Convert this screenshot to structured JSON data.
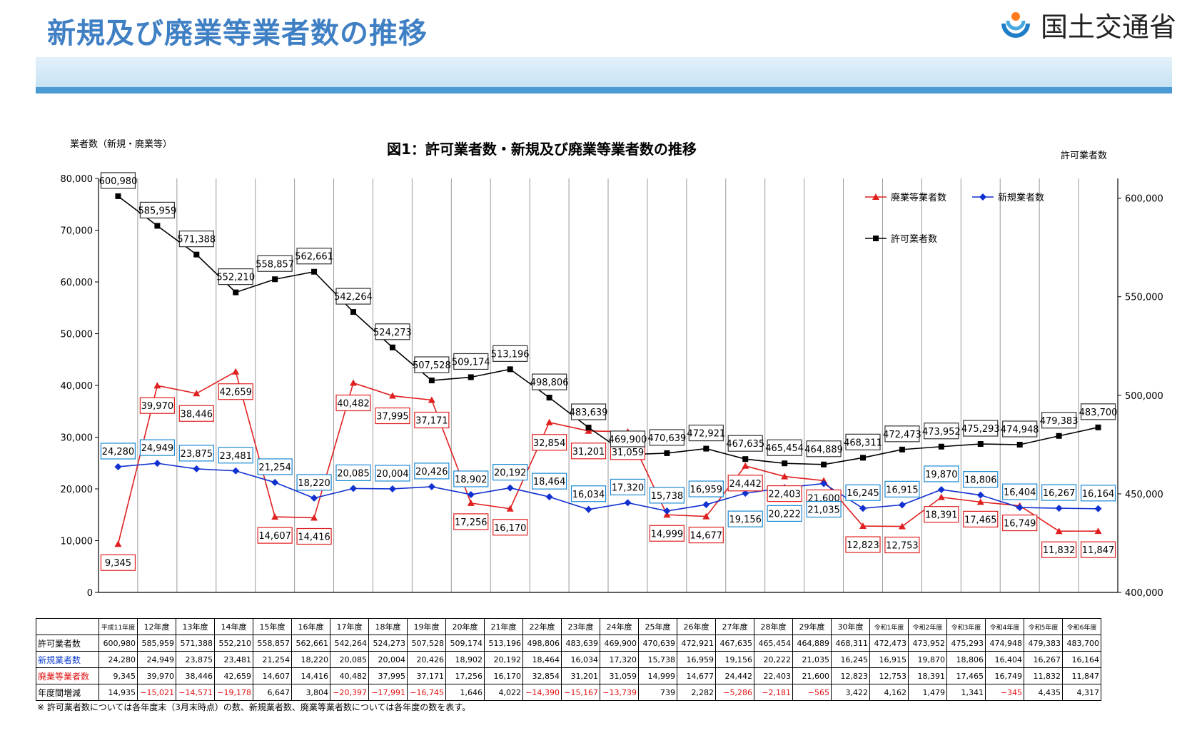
{
  "page": {
    "title": "新規及び廃業等業者数の推移",
    "ministry": "国土交通省",
    "footnote": "※  許可業者数については各年度末（3月末時点）の数、新規業者数、廃業等業者数については各年度の数を表す。"
  },
  "chart_data": {
    "type": "line",
    "title": "図1：許可業者数・新規及び廃業等業者数の推移",
    "ylabel_left": "業者数（新規・廃業等）",
    "ylabel_right": "許可業者数",
    "categories": [
      "平成11年度",
      "12年度",
      "13年度",
      "14年度",
      "15年度",
      "16年度",
      "17年度",
      "18年度",
      "19年度",
      "20年度",
      "21年度",
      "22年度",
      "23年度",
      "24年度",
      "25年度",
      "26年度",
      "27年度",
      "28年度",
      "29年度",
      "30年度",
      "令和1年度",
      "令和2年度",
      "令和3年度",
      "令和4年度",
      "令和5年度",
      "令和6年度"
    ],
    "ylim_left": [
      0,
      80000
    ],
    "yticks_left": [
      "0",
      "10,000",
      "20,000",
      "30,000",
      "40,000",
      "50,000",
      "60,000",
      "70,000",
      "80,000"
    ],
    "ylim_right": [
      400000,
      610000
    ],
    "yticks_right": [
      "400,000",
      "450,000",
      "500,000",
      "550,000",
      "600,000"
    ],
    "grid": "vertical",
    "legend_position": "top-right",
    "series": [
      {
        "name": "廃業等業者数",
        "axis": "left",
        "color": "#e02020",
        "marker": "triangle",
        "values": [
          9345,
          39970,
          38446,
          42659,
          14607,
          14416,
          40482,
          37995,
          37171,
          17256,
          16170,
          32854,
          31201,
          31059,
          14999,
          14677,
          24442,
          22403,
          21600,
          12823,
          12753,
          18391,
          17465,
          16749,
          11832,
          11847
        ],
        "labels": [
          "9,345",
          "39,970",
          "38,446",
          "42,659",
          "14,607",
          "14,416",
          "40,482",
          "37,995",
          "37,171",
          "17,256",
          "16,170",
          "32,854",
          "31,201",
          "31,059",
          "14,999",
          "14,677",
          "24,442",
          "22,403",
          "21,600",
          "12,823",
          "12,753",
          "18,391",
          "17,465",
          "16,749",
          "11,832",
          "11,847"
        ]
      },
      {
        "name": "新規業者数",
        "axis": "left",
        "color": "#1030d0",
        "marker": "diamond",
        "values": [
          24280,
          24949,
          23875,
          23481,
          21254,
          18220,
          20085,
          20004,
          20426,
          18902,
          20192,
          18464,
          16034,
          17320,
          15738,
          16959,
          19156,
          20222,
          21035,
          16245,
          16915,
          19870,
          18806,
          16404,
          16267,
          16164
        ],
        "labels": [
          "24,280",
          "24,949",
          "23,875",
          "23,481",
          "21,254",
          "18,220",
          "20,085",
          "20,004",
          "20,426",
          "18,902",
          "20,192",
          "18,464",
          "16,034",
          "17,320",
          "15,738",
          "16,959",
          "19,156",
          "20,222",
          "21,035",
          "16,245",
          "16,915",
          "19,870",
          "18,806",
          "16,404",
          "16,267",
          "16,164"
        ]
      },
      {
        "name": "許可業者数",
        "axis": "right",
        "color": "#000000",
        "marker": "square",
        "values": [
          600980,
          585959,
          571388,
          552210,
          558857,
          562661,
          542264,
          524273,
          507528,
          509174,
          513196,
          498806,
          483639,
          469900,
          470639,
          472921,
          467635,
          465454,
          464889,
          468311,
          472473,
          473952,
          475293,
          474948,
          479383,
          483700
        ],
        "labels": [
          "600,980",
          "585,959",
          "571,388",
          "552,210",
          "558,857",
          "562,661",
          "542,264",
          "524,273",
          "507,528",
          "509,174",
          "513,196",
          "498,806",
          "483,639",
          "469,900",
          "470,639",
          "472,921",
          "467,635",
          "465,454",
          "464,889",
          "468,311",
          "472,473",
          "473,952",
          "475,293",
          "474,948",
          "479,383",
          "483,700"
        ]
      }
    ]
  },
  "table": {
    "headers": [
      "平成11年度",
      "12年度",
      "13年度",
      "14年度",
      "15年度",
      "16年度",
      "17年度",
      "18年度",
      "19年度",
      "20年度",
      "21年度",
      "22年度",
      "23年度",
      "24年度",
      "25年度",
      "26年度",
      "27年度",
      "28年度",
      "29年度",
      "30年度",
      "令和1年度",
      "令和2年度",
      "令和3年度",
      "令和4年度",
      "令和5年度",
      "令和6年度"
    ],
    "rows": [
      {
        "label": "許可業者数",
        "style": "",
        "cells": [
          "600,980",
          "585,959",
          "571,388",
          "552,210",
          "558,857",
          "562,661",
          "542,264",
          "524,273",
          "507,528",
          "509,174",
          "513,196",
          "498,806",
          "483,639",
          "469,900",
          "470,639",
          "472,921",
          "467,635",
          "465,454",
          "464,889",
          "468,311",
          "472,473",
          "473,952",
          "475,293",
          "474,948",
          "479,383",
          "483,700"
        ]
      },
      {
        "label": "新規業者数",
        "style": "blue",
        "cells": [
          "24,280",
          "24,949",
          "23,875",
          "23,481",
          "21,254",
          "18,220",
          "20,085",
          "20,004",
          "20,426",
          "18,902",
          "20,192",
          "18,464",
          "16,034",
          "17,320",
          "15,738",
          "16,959",
          "19,156",
          "20,222",
          "21,035",
          "16,245",
          "16,915",
          "19,870",
          "18,806",
          "16,404",
          "16,267",
          "16,164"
        ]
      },
      {
        "label": "廃業等業者数",
        "style": "red",
        "cells": [
          "9,345",
          "39,970",
          "38,446",
          "42,659",
          "14,607",
          "14,416",
          "40,482",
          "37,995",
          "37,171",
          "17,256",
          "16,170",
          "32,854",
          "31,201",
          "31,059",
          "14,999",
          "14,677",
          "24,442",
          "22,403",
          "21,600",
          "12,823",
          "12,753",
          "18,391",
          "17,465",
          "16,749",
          "11,832",
          "11,847"
        ]
      },
      {
        "label": "年度間増減",
        "style": "",
        "cells": [
          "14,935",
          "−15,021",
          "−14,571",
          "−19,178",
          "6,647",
          "3,804",
          "−20,397",
          "−17,991",
          "−16,745",
          "1,646",
          "4,022",
          "−14,390",
          "−15,167",
          "−13,739",
          "739",
          "2,282",
          "−5,286",
          "−2,181",
          "−565",
          "3,422",
          "4,162",
          "1,479",
          "1,341",
          "−345",
          "4,435",
          "4,317"
        ]
      }
    ]
  }
}
